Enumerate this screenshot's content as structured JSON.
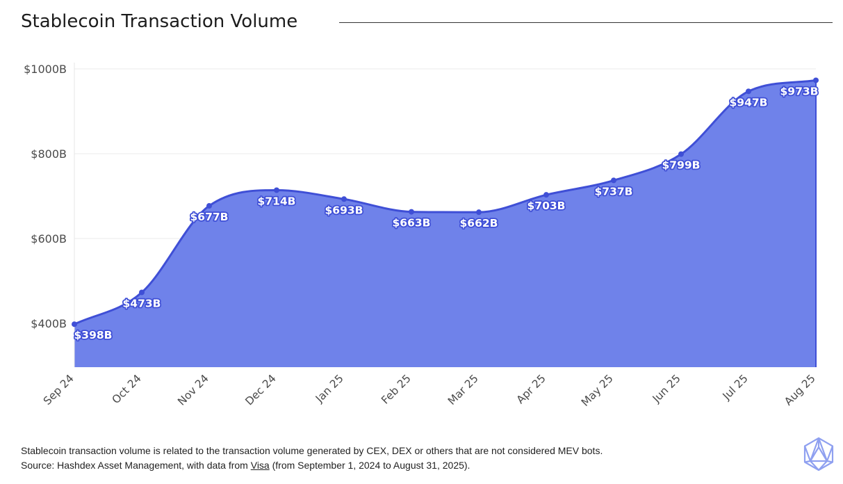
{
  "title": "Stablecoin Transaction Volume",
  "colors": {
    "line": "#3f4fd6",
    "area": "#6f82ea",
    "grid": "#ebebeb",
    "logo": "#8fa0f0"
  },
  "footnote": {
    "line1": "Stablecoin transaction volume is related to the transaction volume generated by CEX, DEX or others that are not considered MEV bots.",
    "line2_prefix": "Source: Hashdex Asset Management, with data from ",
    "line2_link": "Visa",
    "line2_suffix": " (from September 1, 2024 to August 31, 2025)."
  },
  "logo_icon": "hashdex-icosahedron-logo-icon",
  "chart_data": {
    "type": "area",
    "title": "Stablecoin Transaction Volume",
    "xlabel": "",
    "ylabel": "",
    "categories": [
      "Sep 24",
      "Oct 24",
      "Nov 24",
      "Dec 24",
      "Jan 25",
      "Feb 25",
      "Mar 25",
      "Apr 25",
      "May 25",
      "Jun 25",
      "Jul 25",
      "Aug 25"
    ],
    "values": [
      398,
      473,
      677,
      714,
      693,
      663,
      662,
      703,
      737,
      799,
      947,
      973
    ],
    "data_labels": [
      "$398B",
      "$473B",
      "$677B",
      "$714B",
      "$693B",
      "$663B",
      "$662B",
      "$703B",
      "$737B",
      "$799B",
      "$947B",
      "$973B"
    ],
    "yticks": [
      400,
      600,
      800,
      1000
    ],
    "ytick_labels": [
      "$400B",
      "$600B",
      "$800B",
      "$1000B"
    ],
    "ylim": [
      295,
      1000
    ],
    "grid": true,
    "legend": "none"
  }
}
